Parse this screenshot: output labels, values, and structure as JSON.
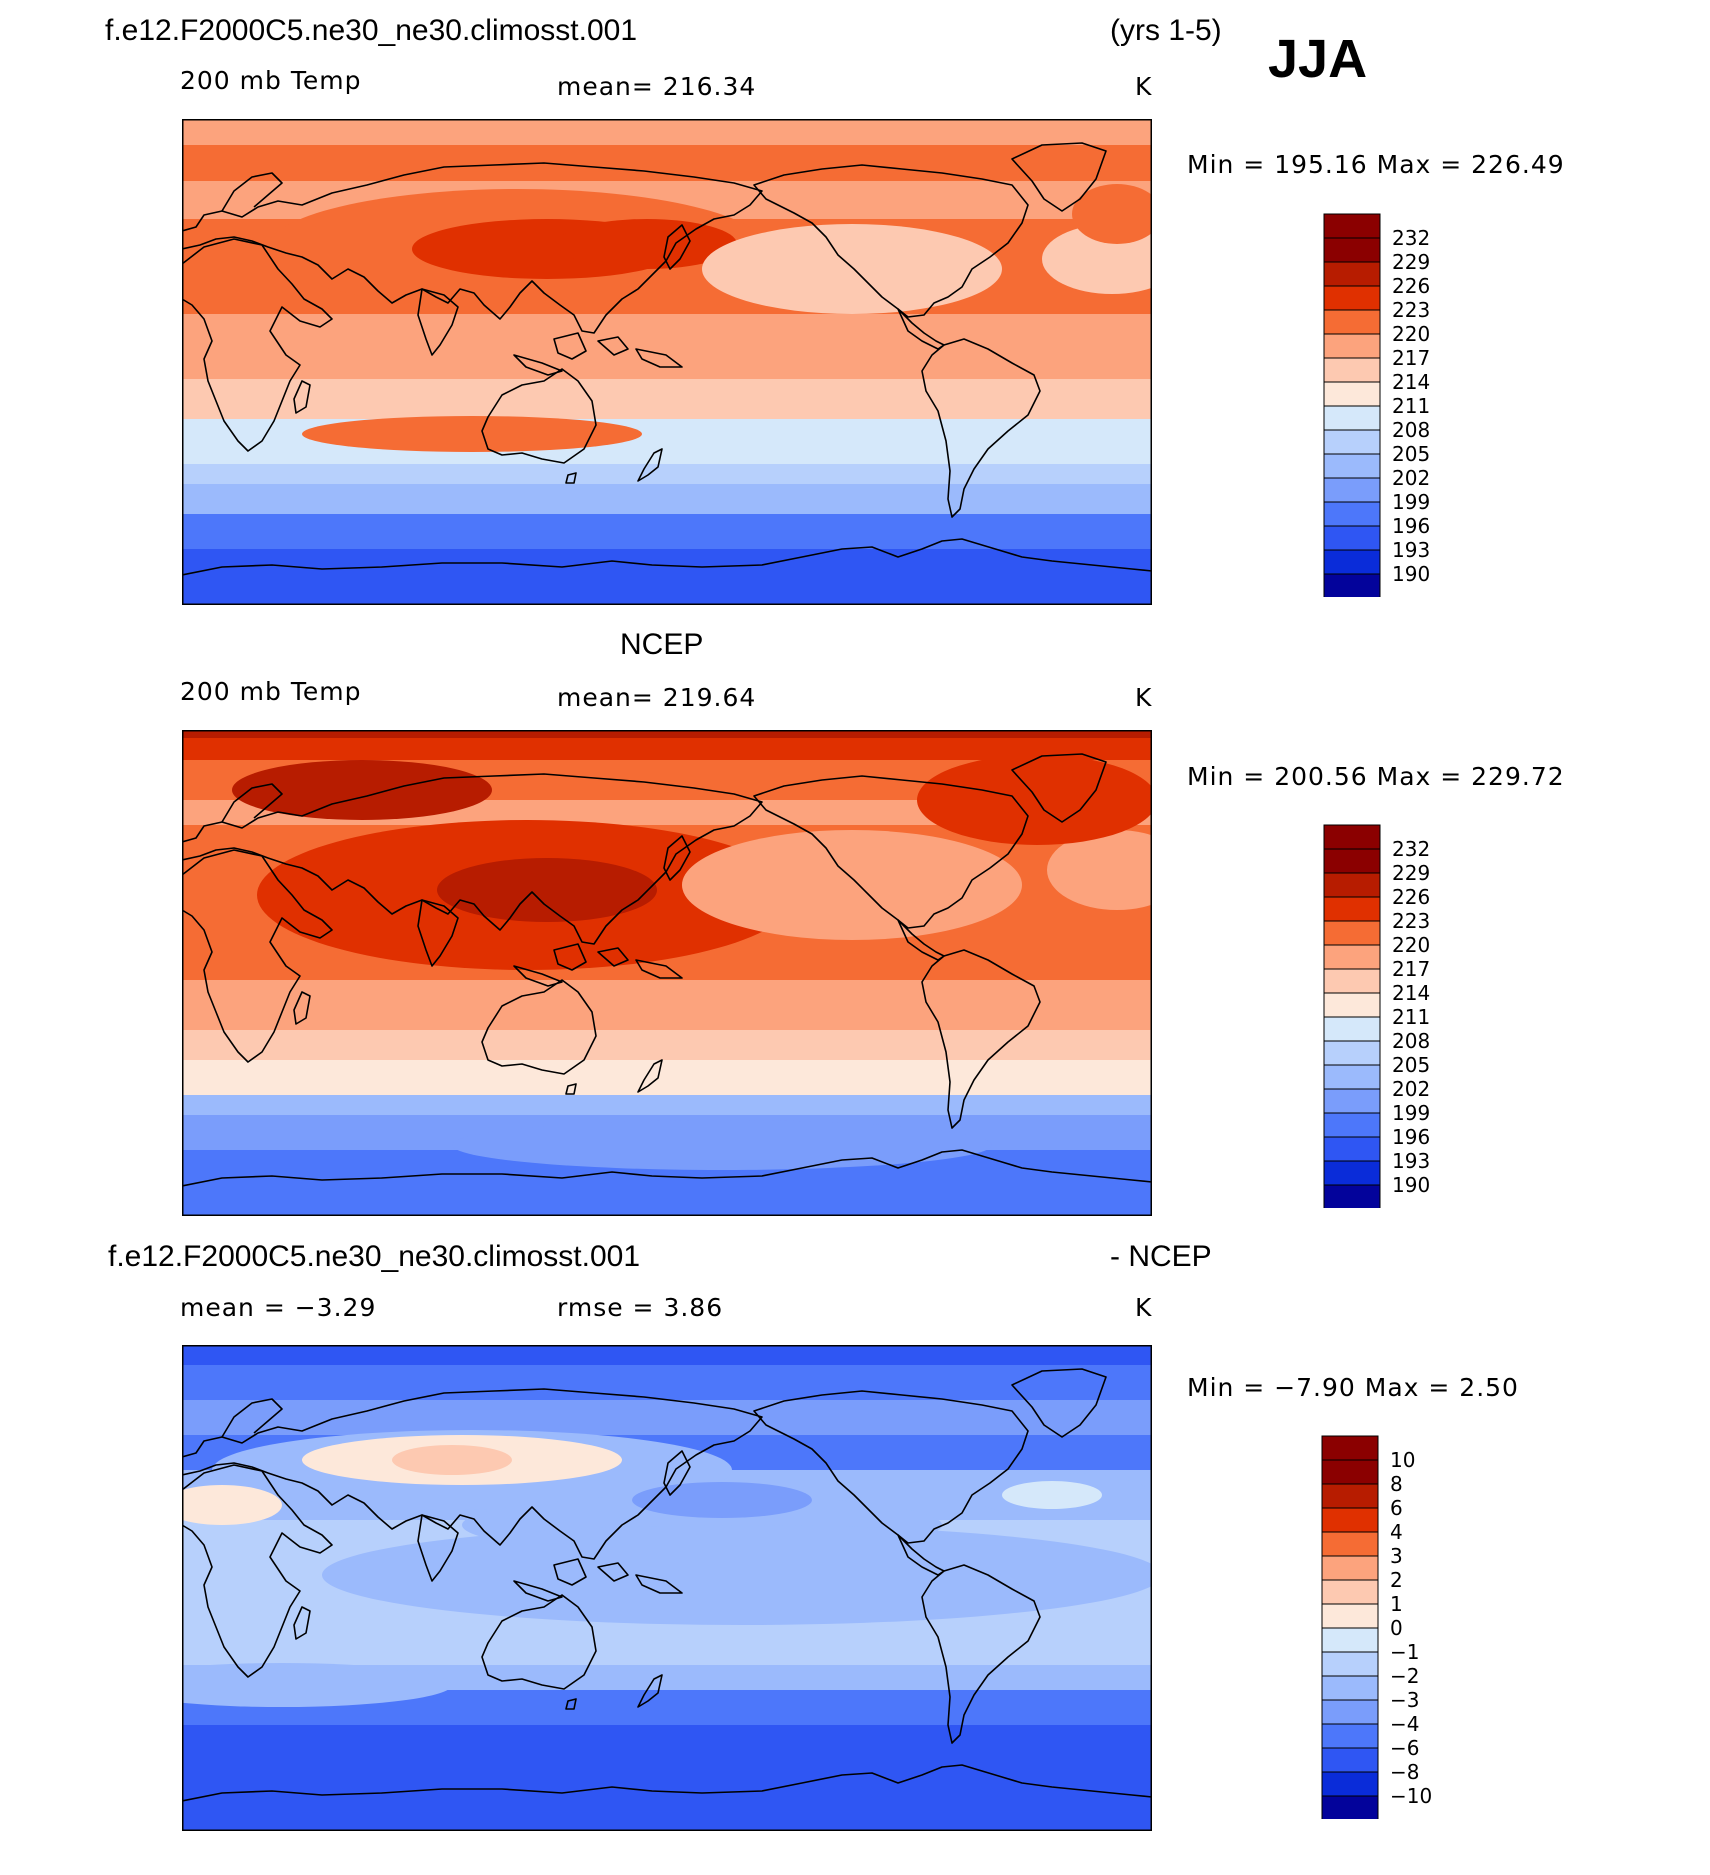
{
  "season": "JJA",
  "panels": [
    {
      "header_left": "f.e12.F2000C5.ne30_ne30.climosst.001",
      "header_right": "(yrs 1-5)",
      "variable": "200 mb Temp",
      "stat": "mean=  216.34",
      "units": "K",
      "minmax": "Min  =  195.16  Max  =  226.49",
      "colorbar_labels": [
        "232",
        "229",
        "226",
        "223",
        "220",
        "217",
        "214",
        "211",
        "208",
        "205",
        "202",
        "199",
        "196",
        "193",
        "190"
      ]
    },
    {
      "header_center": "NCEP",
      "variable": "200 mb Temp",
      "stat": "mean=  219.64",
      "units": "K",
      "minmax": "Min  =  200.56  Max  =  229.72",
      "colorbar_labels": [
        "232",
        "229",
        "226",
        "223",
        "220",
        "217",
        "214",
        "211",
        "208",
        "205",
        "202",
        "199",
        "196",
        "193",
        "190"
      ]
    },
    {
      "header_left": "f.e12.F2000C5.ne30_ne30.climosst.001",
      "header_right": "- NCEP",
      "stat_left": "mean  =   −3.29",
      "stat": "rmse  =     3.86",
      "units": "K",
      "minmax": "Min  =    −7.90  Max  =     2.50",
      "colorbar_labels": [
        "10",
        "8",
        "6",
        "4",
        "3",
        "2",
        "1",
        "0",
        "−1",
        "−2",
        "−3",
        "−4",
        "−6",
        "−8",
        "−10"
      ]
    }
  ],
  "colors": {
    "palette": [
      "#8b0000",
      "#b71c00",
      "#e03000",
      "#f56c34",
      "#fca37d",
      "#fdc9b1",
      "#fde8da",
      "#d5e8fa",
      "#b7d0fc",
      "#9bbafc",
      "#7a9dfb",
      "#4d77fa",
      "#2f56f3",
      "#0a2cd9",
      "#03039b"
    ],
    "coast": "#000000",
    "frame": "#000000"
  }
}
